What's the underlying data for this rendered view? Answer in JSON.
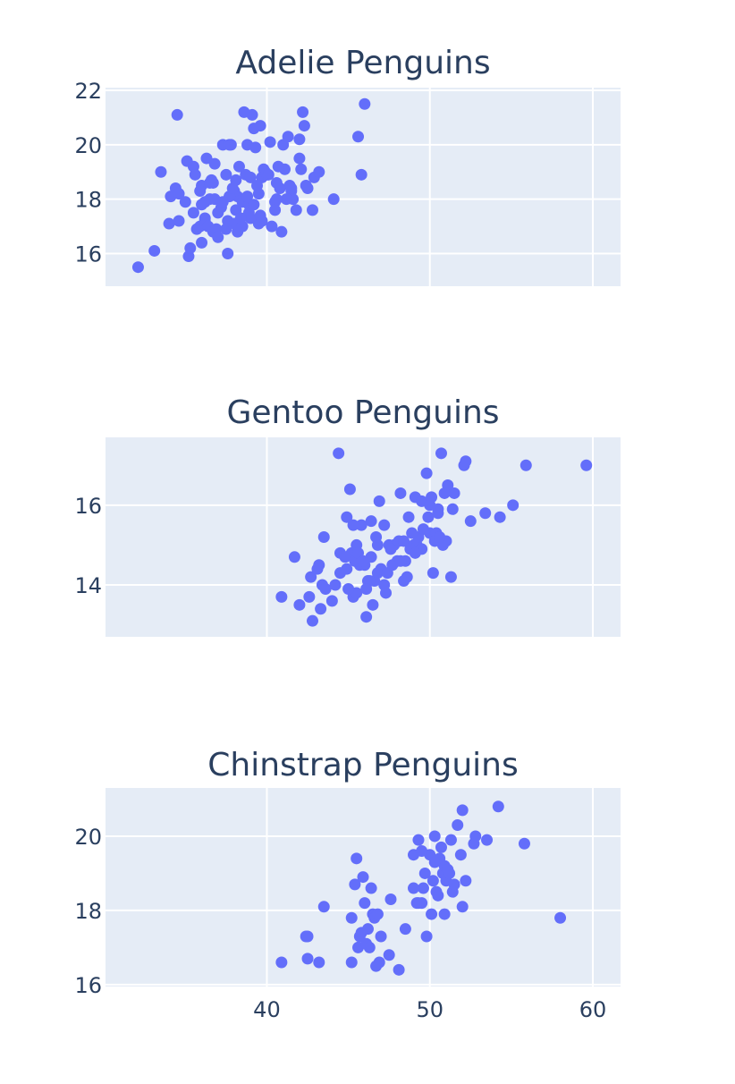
{
  "colors": {
    "background": "#ffffff",
    "plot_background": "#e5ecf6",
    "grid": "#ffffff",
    "marker": "#636efa",
    "text": "#2a3f5f"
  },
  "chart_data": [
    {
      "type": "scatter",
      "title": "Adelie Penguins",
      "xlim": [
        30.1,
        61.7
      ],
      "ylim": [
        14.8,
        22.1
      ],
      "xticks": [
        40,
        50,
        60
      ],
      "xtick_labels": [
        "",
        "",
        ""
      ],
      "yticks": [
        16,
        18,
        20,
        22
      ],
      "ytick_labels": [
        "16",
        "18",
        "20",
        "22"
      ],
      "grid": true,
      "series": [
        {
          "x": [
            32.1,
            33.1,
            33.5,
            34.0,
            34.1,
            34.4,
            34.5,
            34.6,
            34.6,
            35.0,
            35.1,
            35.2,
            35.3,
            35.5,
            35.5,
            35.6,
            35.7,
            35.9,
            36.0,
            36.0,
            36.2,
            36.2,
            36.3,
            36.4,
            36.5,
            36.6,
            36.7,
            36.8,
            36.9,
            37.0,
            37.2,
            37.3,
            37.5,
            37.6,
            37.7,
            37.8,
            38.0,
            38.1,
            38.2,
            38.3,
            38.5,
            38.6,
            38.7,
            38.8,
            38.9,
            39.0,
            39.1,
            39.2,
            39.3,
            39.5,
            39.6,
            39.7,
            39.8,
            40.2,
            40.3,
            40.5,
            40.6,
            40.8,
            40.9,
            41.0,
            41.1,
            41.3,
            41.4,
            41.5,
            41.6,
            42.0,
            42.1,
            42.2,
            42.3,
            42.5,
            42.8,
            42.9,
            43.2,
            44.1,
            45.6,
            45.8,
            46.0,
            36.0,
            37.0,
            38.0,
            39.0,
            40.0,
            37.5,
            38.5,
            39.5,
            40.5,
            36.5,
            37.7,
            38.9,
            39.9,
            41.2,
            35.9,
            37.3,
            38.2,
            39.4,
            40.7,
            36.8,
            38.8,
            39.6,
            40.1,
            41.5,
            42.0,
            37.9,
            38.4,
            39.2,
            36.2,
            37.6,
            40.6,
            41.8,
            38.1,
            39.7,
            36.7,
            42.4
          ],
          "y": [
            15.5,
            16.1,
            19.0,
            17.1,
            18.1,
            18.4,
            21.1,
            17.2,
            18.2,
            17.9,
            19.4,
            15.9,
            16.2,
            17.5,
            19.2,
            18.9,
            16.9,
            17.0,
            18.5,
            16.4,
            17.3,
            17.2,
            19.5,
            17.0,
            18.0,
            18.7,
            16.8,
            19.3,
            16.9,
            16.6,
            17.7,
            20.0,
            18.9,
            16.0,
            20.0,
            20.0,
            17.1,
            17.6,
            18.1,
            19.2,
            17.9,
            21.2,
            18.9,
            20.0,
            17.8,
            18.8,
            21.1,
            20.6,
            19.9,
            17.1,
            20.7,
            18.8,
            19.1,
            20.1,
            17.0,
            17.9,
            18.6,
            18.4,
            16.8,
            20.0,
            19.1,
            20.3,
            18.5,
            18.3,
            18.0,
            20.2,
            19.1,
            21.2,
            20.7,
            18.4,
            17.6,
            18.8,
            19.0,
            18.0,
            20.3,
            18.9,
            21.5,
            17.8,
            17.5,
            18.3,
            17.3,
            18.9,
            16.9,
            17.0,
            18.2,
            17.6,
            18.6,
            18.1,
            17.5,
            19.0,
            18.0,
            18.3,
            17.9,
            16.8,
            18.5,
            19.2,
            18.0,
            18.1,
            17.4,
            18.9,
            18.4,
            19.5,
            18.4,
            17.3,
            17.8,
            17.9,
            17.2,
            18.0,
            17.6,
            18.7,
            17.2,
            18.6,
            18.5
          ]
        }
      ]
    },
    {
      "type": "scatter",
      "title": "Gentoo Penguins",
      "xlim": [
        30.1,
        61.7
      ],
      "ylim": [
        12.7,
        17.7
      ],
      "xticks": [
        40,
        50,
        60
      ],
      "xtick_labels": [
        "",
        "",
        ""
      ],
      "yticks": [
        14,
        16
      ],
      "ytick_labels": [
        "14",
        "16"
      ],
      "grid": true,
      "series": [
        {
          "x": [
            40.9,
            41.7,
            42.0,
            42.6,
            42.8,
            43.2,
            43.3,
            43.5,
            43.4,
            44.0,
            44.4,
            44.5,
            44.9,
            45.1,
            45.2,
            45.3,
            45.5,
            45.5,
            45.7,
            45.8,
            46.1,
            46.2,
            46.4,
            46.5,
            46.8,
            46.9,
            47.2,
            47.5,
            47.8,
            48.1,
            48.2,
            48.4,
            48.5,
            48.7,
            49.1,
            49.2,
            49.5,
            49.8,
            50.0,
            50.2,
            50.4,
            50.5,
            50.7,
            50.8,
            51.1,
            51.3,
            51.5,
            52.1,
            52.2,
            52.5,
            53.4,
            54.3,
            55.1,
            55.9,
            59.6,
            42.7,
            43.6,
            44.2,
            44.9,
            45.4,
            46.0,
            46.4,
            46.6,
            47.0,
            47.4,
            47.6,
            48.0,
            48.4,
            48.6,
            49.0,
            49.3,
            49.6,
            50.0,
            50.1,
            50.5,
            50.9,
            51.0,
            45.0,
            45.6,
            46.3,
            47.3,
            48.8,
            49.9,
            43.1,
            44.5,
            46.8,
            47.7,
            48.9,
            49.5,
            50.3,
            45.9,
            46.1,
            46.7,
            47.2,
            48.2,
            49.1,
            44.8,
            50.6,
            51.4,
            45.3
          ],
          "y": [
            13.7,
            14.7,
            13.5,
            13.7,
            13.1,
            14.5,
            13.4,
            15.2,
            14.0,
            13.6,
            17.3,
            14.3,
            15.7,
            16.4,
            14.8,
            13.7,
            13.8,
            15.0,
            14.5,
            15.5,
            13.2,
            14.1,
            15.6,
            13.5,
            14.3,
            16.1,
            15.5,
            15.0,
            15.0,
            15.1,
            16.3,
            14.1,
            14.6,
            15.7,
            16.2,
            15.0,
            16.1,
            16.8,
            15.3,
            14.3,
            15.3,
            15.9,
            17.3,
            15.0,
            16.5,
            14.2,
            16.3,
            17.0,
            17.1,
            15.6,
            15.8,
            15.7,
            16.0,
            17.0,
            17.0,
            14.2,
            13.9,
            14.0,
            14.4,
            14.6,
            14.5,
            14.7,
            14.1,
            14.4,
            14.3,
            14.9,
            14.6,
            15.1,
            14.2,
            15.0,
            15.2,
            15.4,
            16.0,
            16.2,
            15.8,
            16.3,
            15.1,
            13.9,
            14.8,
            14.1,
            13.8,
            14.9,
            15.7,
            14.4,
            14.8,
            15.0,
            14.5,
            15.3,
            14.9,
            15.1,
            14.6,
            13.9,
            15.2,
            14.0,
            14.6,
            14.8,
            14.7,
            15.2,
            15.9,
            15.5
          ]
        }
      ]
    },
    {
      "type": "scatter",
      "title": "Chinstrap Penguins",
      "xlim": [
        30.1,
        61.7
      ],
      "ylim": [
        15.95,
        21.3
      ],
      "xticks": [
        40,
        50,
        60
      ],
      "xtick_labels": [
        "40",
        "50",
        "60"
      ],
      "yticks": [
        16,
        18,
        20
      ],
      "ytick_labels": [
        "16",
        "18",
        "20"
      ],
      "grid": true,
      "series": [
        {
          "x": [
            40.9,
            42.4,
            42.5,
            42.5,
            43.2,
            43.5,
            45.2,
            45.2,
            45.4,
            45.5,
            45.6,
            45.7,
            45.9,
            46.0,
            46.1,
            46.2,
            46.4,
            46.5,
            46.6,
            46.7,
            46.8,
            46.9,
            47.0,
            47.5,
            47.6,
            48.1,
            48.5,
            49.0,
            49.2,
            49.3,
            49.5,
            49.6,
            49.7,
            49.8,
            50.0,
            50.1,
            50.2,
            50.3,
            50.5,
            50.6,
            50.7,
            50.8,
            50.9,
            51.0,
            51.3,
            51.4,
            51.5,
            51.7,
            52.0,
            52.0,
            52.2,
            52.7,
            52.8,
            53.5,
            54.2,
            55.8,
            58.0,
            49.0,
            50.4,
            51.2,
            49.5,
            50.9,
            51.9,
            46.3,
            45.8,
            50.3,
            51.1,
            49.3
          ],
          "y": [
            16.6,
            17.3,
            16.7,
            17.3,
            16.6,
            18.1,
            16.6,
            17.8,
            18.7,
            19.4,
            17.0,
            17.3,
            18.9,
            18.2,
            17.1,
            17.5,
            18.6,
            17.9,
            17.8,
            16.5,
            17.9,
            16.6,
            17.3,
            16.8,
            18.3,
            16.4,
            17.5,
            19.5,
            18.2,
            19.9,
            18.2,
            18.6,
            19.0,
            17.3,
            19.5,
            17.9,
            18.8,
            20.0,
            18.4,
            19.4,
            19.7,
            19.0,
            17.9,
            18.8,
            19.9,
            18.5,
            18.7,
            20.3,
            18.1,
            20.7,
            18.8,
            19.8,
            20.0,
            19.9,
            20.8,
            19.8,
            17.8,
            18.6,
            18.5,
            19.0,
            19.6,
            19.2,
            19.5,
            17.0,
            17.4,
            19.3,
            19.1,
            18.2
          ]
        }
      ]
    }
  ]
}
